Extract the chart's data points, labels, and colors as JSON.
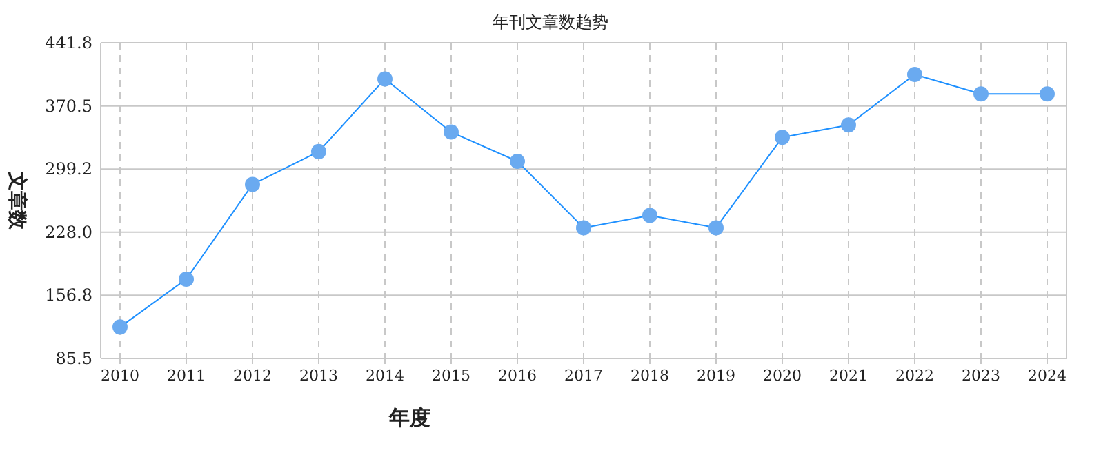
{
  "chart_data": {
    "type": "line",
    "title": "年刊文章数趋势",
    "xlabel": "年度",
    "ylabel": "文章数",
    "categories": [
      "2010",
      "2011",
      "2012",
      "2013",
      "2014",
      "2015",
      "2016",
      "2017",
      "2018",
      "2019",
      "2020",
      "2021",
      "2022",
      "2023",
      "2024"
    ],
    "series": [
      {
        "color": "#1e90ff",
        "values": [
          121,
          175,
          282,
          319,
          401,
          341,
          308,
          233,
          247,
          233,
          335,
          349,
          406,
          384,
          384
        ]
      }
    ],
    "ylim": [
      85.5,
      441.8
    ],
    "yticks": [
      85.5,
      156.8,
      {
        "value": 228,
        "label": "228.0"
      },
      299.2,
      370.5,
      441.8
    ],
    "grid": true,
    "marker": "circle",
    "line_style": "solid"
  }
}
